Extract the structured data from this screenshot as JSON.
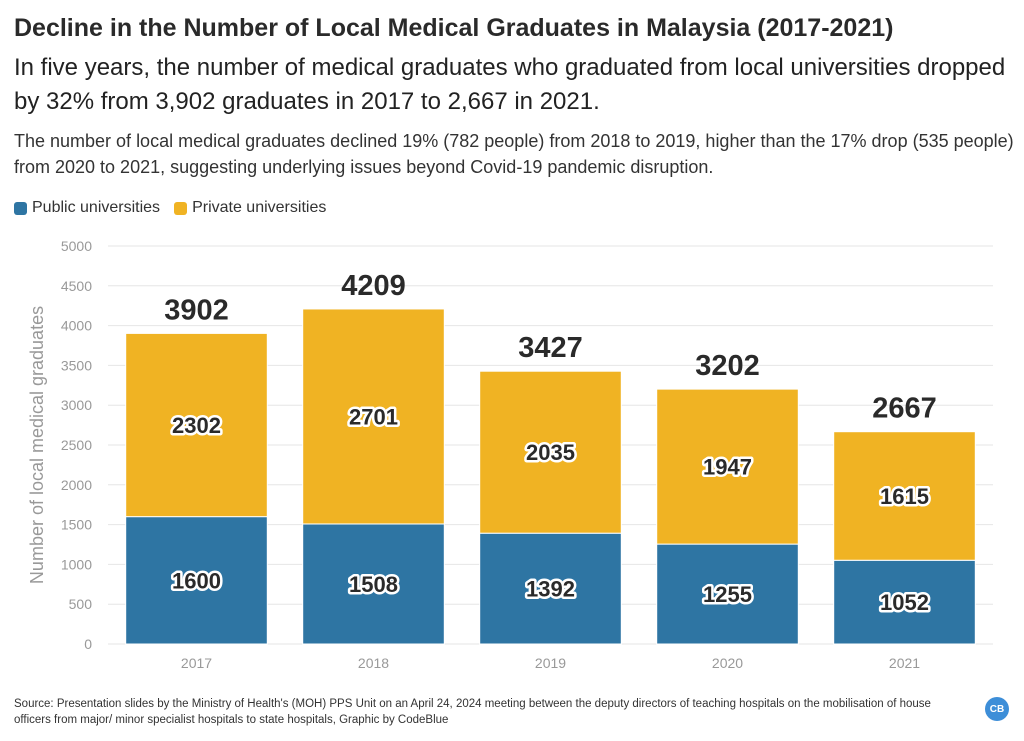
{
  "header": {
    "title": "Decline in the Number of Local Medical Graduates in Malaysia (2017-2021)",
    "subtitle": "In five years, the number of medical graduates who graduated from local universities dropped by 32% from 3,902 graduates in 2017 to 2,667 in 2021.",
    "description": "The number of local medical graduates declined 19% (782 people) from 2018 to 2019, higher than the 17% drop (535 people) from 2020 to 2021, suggesting underlying issues beyond Covid-19 pandemic disruption."
  },
  "legend": {
    "public_label": "Public universities",
    "private_label": "Private universities"
  },
  "colors": {
    "public": "#2e75a3",
    "private": "#f0b323",
    "grid": "#e6e6e6",
    "axis_text": "#999999",
    "total_text": "#2a2a2a"
  },
  "chart_data": {
    "type": "bar",
    "stacked": true,
    "categories": [
      "2017",
      "2018",
      "2019",
      "2020",
      "2021"
    ],
    "series": [
      {
        "name": "Public universities",
        "values": [
          1600,
          1508,
          1392,
          1255,
          1052
        ]
      },
      {
        "name": "Private universities",
        "values": [
          2302,
          2701,
          2035,
          1947,
          1615
        ]
      }
    ],
    "totals": [
      3902,
      4209,
      3427,
      3202,
      2667
    ],
    "ylabel": "Number of local medical graduates",
    "ylim": [
      0,
      5000
    ],
    "yticks": [
      0,
      500,
      1000,
      1500,
      2000,
      2500,
      3000,
      3500,
      4000,
      4500,
      5000
    ],
    "grid": true,
    "legend_position": "top-left"
  },
  "footer": {
    "source": "Source: Presentation slides by the Ministry of Health's (MOH) PPS Unit on an April 24, 2024 meeting between the deputy directors of teaching hospitals on the mobilisation of house officers from major/ minor specialist hospitals to state hospitals, Graphic by CodeBlue",
    "logo_text": "CB"
  }
}
